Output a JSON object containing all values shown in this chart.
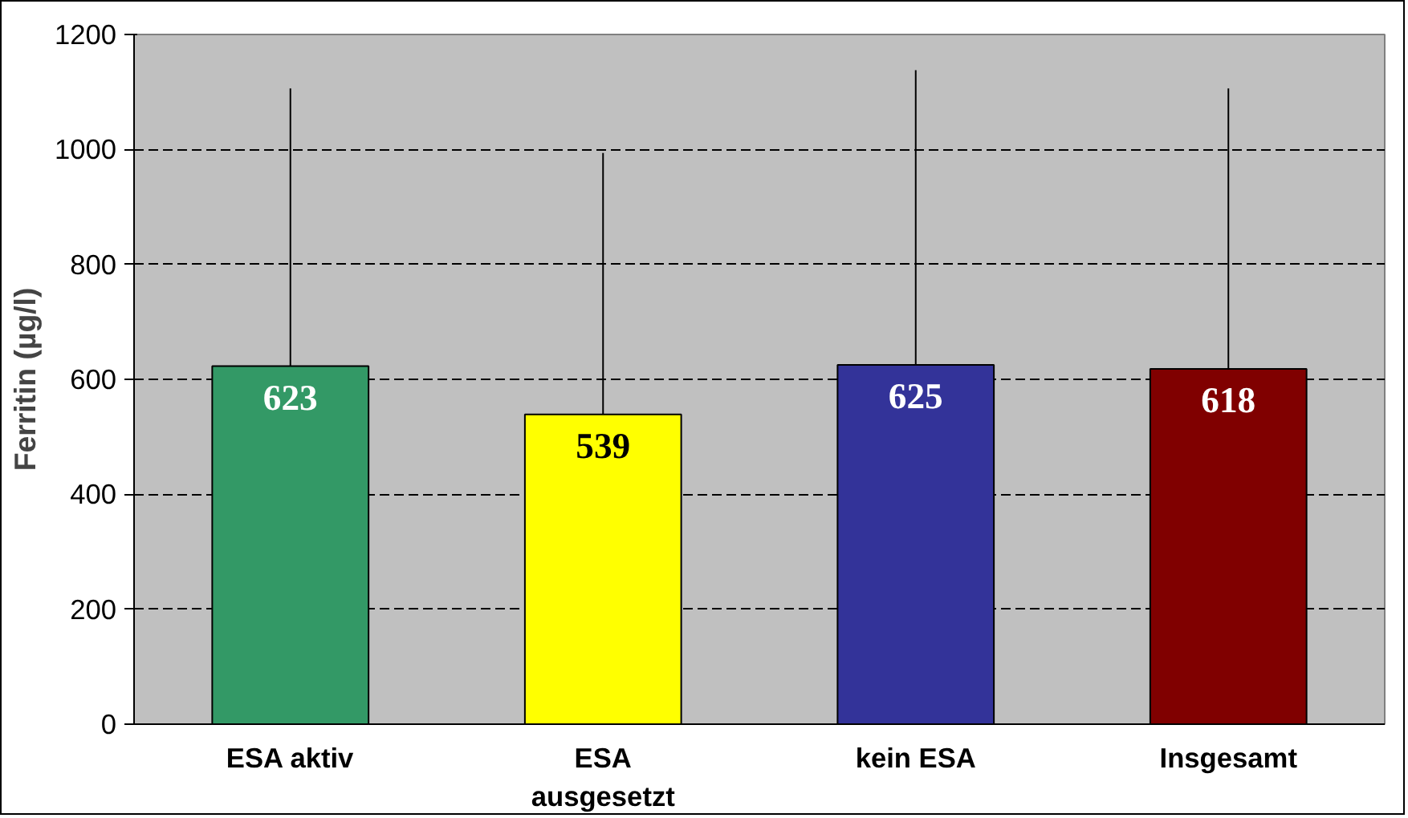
{
  "chart_data": {
    "type": "bar",
    "ylabel": "Ferritin (µg/l)",
    "categories": [
      "ESA aktiv",
      "ESA ausgesetzt",
      "kein ESA",
      "Insgesamt"
    ],
    "values": [
      623,
      539,
      625,
      618
    ],
    "colors": [
      "#339966",
      "#ffff00",
      "#333399",
      "#800000"
    ],
    "errors": [
      [
        623,
        1106
      ],
      [
        539,
        994
      ],
      [
        625,
        1138
      ],
      [
        618,
        1106
      ]
    ],
    "ylim": [
      0,
      1200
    ],
    "yticks": [
      0,
      200,
      400,
      600,
      800,
      1000,
      1200
    ],
    "grid": "y",
    "data_labels": true
  }
}
